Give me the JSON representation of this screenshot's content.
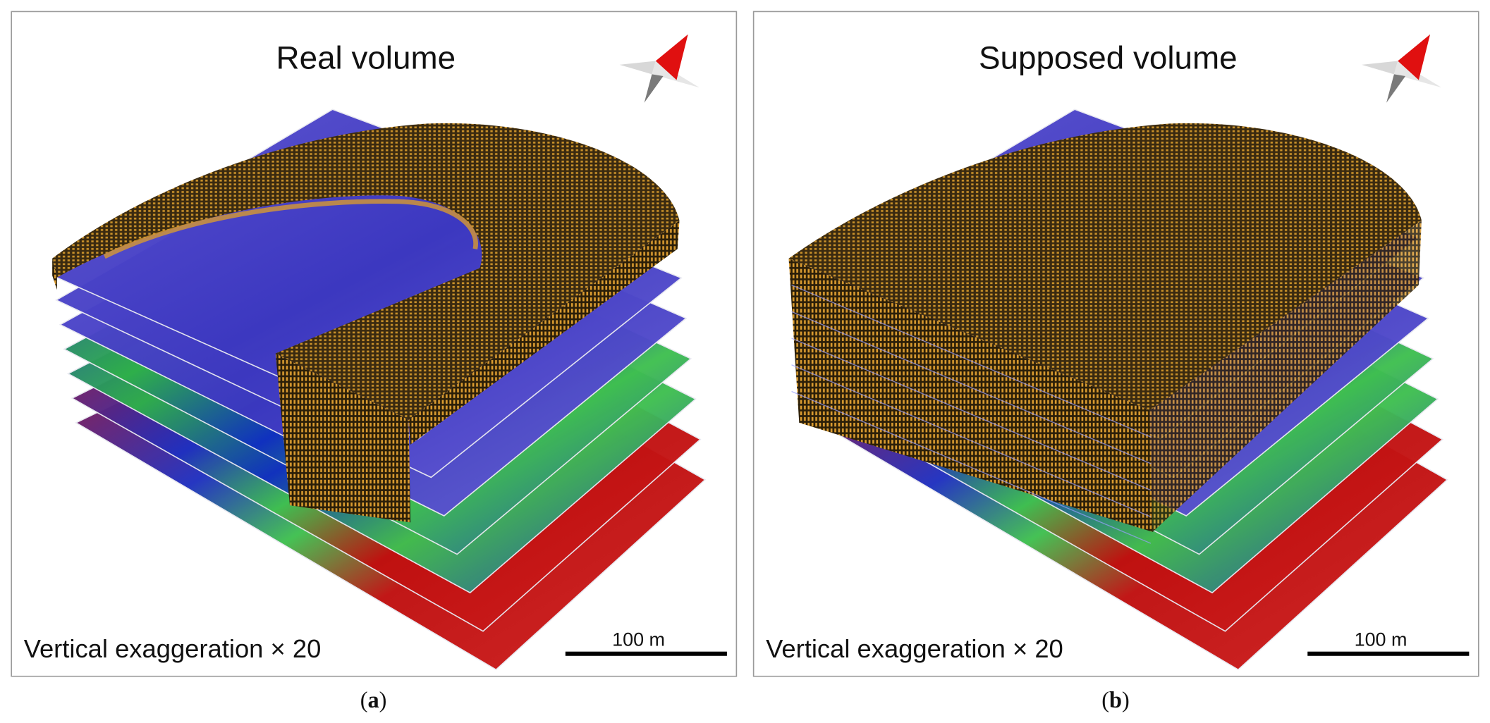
{
  "panels": [
    {
      "id": "a",
      "title": "Real volume",
      "note": "Vertical exaggeration × 20",
      "scale_label": "100 m",
      "caption_letter": "a",
      "volume": "horseshoe"
    },
    {
      "id": "b",
      "title": "Supposed volume",
      "note": "Vertical exaggeration × 20",
      "scale_label": "100 m",
      "caption_letter": "b",
      "volume": "full"
    }
  ],
  "colors": {
    "volume_dark": "#3a2a10",
    "volume_cell": "#c8902a",
    "layer_blue": "#4a44c8",
    "layer_green": "#2fb04a",
    "layer_red": "#c01010",
    "compass_red": "#e01010"
  }
}
